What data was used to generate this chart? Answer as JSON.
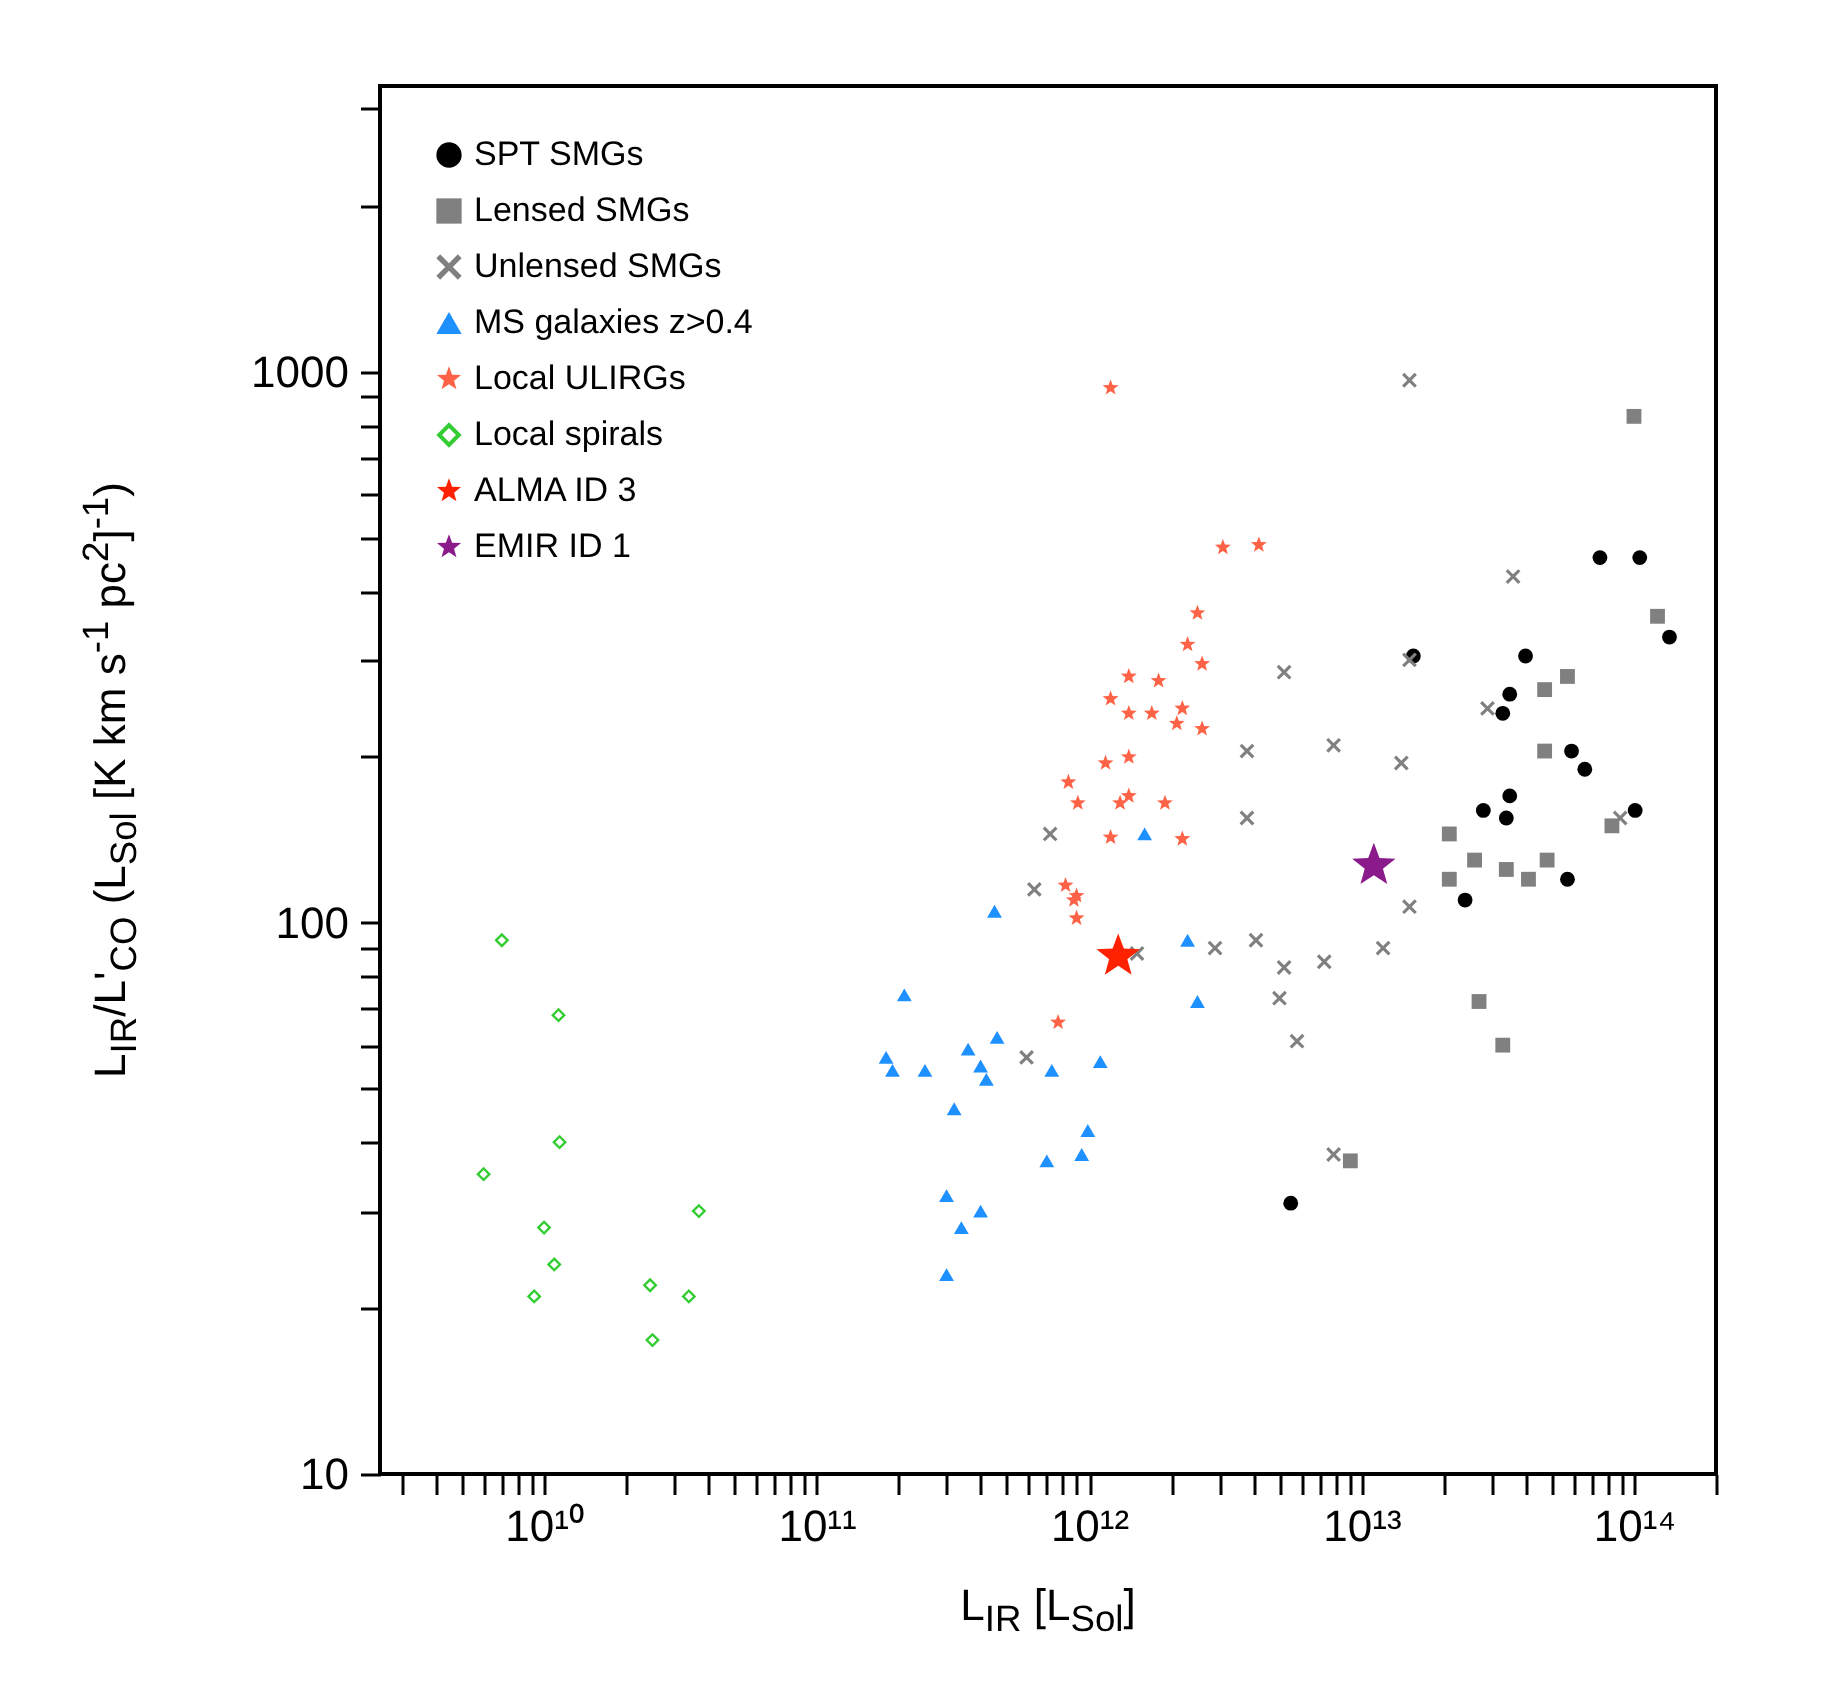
{
  "chart_data": {
    "type": "scatter",
    "xlabel": "L$_{IR}$ [L$_{Sol}$]",
    "ylabel": "L$_{IR}$/L'$_{CO}$ (L$_{Sol}$ [K km s$^{-1}$ pc$^{2}$]$^{-1}$)",
    "log": "xy",
    "legend": "top left",
    "grid": false,
    "xlim": [
      2500000000.0,
      200000000000000.0
    ],
    "ylim": [
      10,
      3300
    ],
    "xticks": [
      {
        "value": 3000000000.0,
        "label": null
      },
      {
        "value": 4000000000.0,
        "label": null
      },
      {
        "value": 5000000000.0,
        "label": null
      },
      {
        "value": 6000000000.0,
        "label": null
      },
      {
        "value": 7000000000.0,
        "label": null
      },
      {
        "value": 8000000000.0,
        "label": null
      },
      {
        "value": 9000000000.0,
        "label": null
      },
      {
        "value": 10000000000.0,
        "label": "10¹⁰"
      },
      {
        "value": 20000000000.0,
        "label": null
      },
      {
        "value": 30000000000.0,
        "label": null
      },
      {
        "value": 40000000000.0,
        "label": null
      },
      {
        "value": 50000000000.0,
        "label": null
      },
      {
        "value": 60000000000.0,
        "label": null
      },
      {
        "value": 70000000000.0,
        "label": null
      },
      {
        "value": 80000000000.0,
        "label": null
      },
      {
        "value": 90000000000.0,
        "label": null
      },
      {
        "value": 100000000000.0,
        "label": "10¹¹"
      },
      {
        "value": 200000000000.0,
        "label": null
      },
      {
        "value": 300000000000.0,
        "label": null
      },
      {
        "value": 400000000000.0,
        "label": null
      },
      {
        "value": 500000000000.0,
        "label": null
      },
      {
        "value": 600000000000.0,
        "label": null
      },
      {
        "value": 700000000000.0,
        "label": null
      },
      {
        "value": 800000000000.0,
        "label": null
      },
      {
        "value": 900000000000.0,
        "label": null
      },
      {
        "value": 1000000000000.0,
        "label": "10¹²"
      },
      {
        "value": 2000000000000.0,
        "label": null
      },
      {
        "value": 3000000000000.0,
        "label": null
      },
      {
        "value": 4000000000000.0,
        "label": null
      },
      {
        "value": 5000000000000.0,
        "label": null
      },
      {
        "value": 6000000000000.0,
        "label": null
      },
      {
        "value": 7000000000000.0,
        "label": null
      },
      {
        "value": 8000000000000.0,
        "label": null
      },
      {
        "value": 9000000000000.0,
        "label": null
      },
      {
        "value": 10000000000000.0,
        "label": "10¹³"
      },
      {
        "value": 20000000000000.0,
        "label": null
      },
      {
        "value": 30000000000000.0,
        "label": null
      },
      {
        "value": 40000000000000.0,
        "label": null
      },
      {
        "value": 50000000000000.0,
        "label": null
      },
      {
        "value": 60000000000000.0,
        "label": null
      },
      {
        "value": 70000000000000.0,
        "label": null
      },
      {
        "value": 80000000000000.0,
        "label": null
      },
      {
        "value": 90000000000000.0,
        "label": null
      },
      {
        "value": 100000000000000.0,
        "label": "10¹⁴"
      },
      {
        "value": 200000000000000.0,
        "label": null
      }
    ],
    "yticks": [
      10,
      {
        "value": 20,
        "label": null
      },
      {
        "value": 30,
        "label": null
      },
      {
        "value": 40,
        "label": null
      },
      {
        "value": 50,
        "label": null
      },
      {
        "value": 60,
        "label": null
      },
      {
        "value": 70,
        "label": null
      },
      {
        "value": 80,
        "label": null
      },
      {
        "value": 90,
        "label": null
      },
      100,
      {
        "value": 200,
        "label": null
      },
      {
        "value": 300,
        "label": null
      },
      {
        "value": 400,
        "label": null
      },
      {
        "value": 500,
        "label": null
      },
      {
        "value": 600,
        "label": null
      },
      {
        "value": 700,
        "label": null
      },
      {
        "value": 800,
        "label": null
      },
      {
        "value": 900,
        "label": null
      },
      1000,
      {
        "value": 2000,
        "label": null
      },
      {
        "value": 3000,
        "label": null
      }
    ],
    "series": [
      {
        "name": "SPT SMGs",
        "color": "#000000",
        "marker": "circle",
        "x": [
          75000000000000.0,
          105000000000000.0,
          135000000000000.0,
          15500000000000.0,
          40000000000000.0,
          35000000000000.0,
          33000000000000.0,
          59000000000000.0,
          66000000000000.0,
          28000000000000.0,
          35000000000000.0,
          34000000000000.0,
          101000000000000.0,
          57000000000000.0,
          24000000000000.0,
          5500000000000.0
        ],
        "values": [
          460,
          460,
          330,
          305,
          305,
          260,
          240,
          205,
          190,
          160,
          170,
          155,
          160,
          120,
          110,
          31
        ]
      },
      {
        "name": "Lensed SMGs",
        "color": "#808080",
        "marker": "square",
        "x": [
          100000000000000.0,
          122000000000000.0,
          47000000000000.0,
          57000000000000.0,
          47000000000000.0,
          83000000000000.0,
          21000000000000.0,
          21000000000000.0,
          26000000000000.0,
          34000000000000.0,
          41000000000000.0,
          48000000000000.0,
          27000000000000.0,
          33000000000000.0,
          9100000000000.0
        ],
        "values": [
          830,
          360,
          265,
          280,
          205,
          150,
          145,
          120,
          130,
          125,
          120,
          130,
          72,
          60,
          37
        ]
      },
      {
        "name": "Unlensed SMGs",
        "color": "#808080",
        "marker": "cross",
        "x": [
          5200000000000.0,
          3800000000000.0,
          3800000000000.0,
          7900000000000.0,
          720000000000.0,
          630000000000.0,
          15000000000000.0,
          36000000000000.0,
          15000000000000.0,
          14000000000000.0,
          29000000000000.0,
          89000000000000.0,
          590000000000.0,
          2900000000000.0,
          4100000000000.0,
          5200000000000.0,
          7300000000000.0,
          5000000000000.0,
          5800000000000.0,
          15000000000000.0,
          12000000000000.0,
          1500000000000.0,
          7900000000000.0
        ],
        "values": [
          285,
          205,
          155,
          210,
          145,
          115,
          965,
          425,
          300,
          195,
          245,
          155,
          57,
          90,
          93,
          83,
          85,
          73,
          61,
          107,
          90,
          88,
          38
        ]
      },
      {
        "name": "MS galaxies z>0.4",
        "color": "#1e90ff",
        "marker": "triangle",
        "x": [
          210000000000.0,
          180000000000.0,
          190000000000.0,
          250000000000.0,
          450000000000.0,
          460000000000.0,
          360000000000.0,
          400000000000.0,
          420000000000.0,
          320000000000.0,
          300000000000.0,
          340000000000.0,
          400000000000.0,
          300000000000.0,
          730000000000.0,
          700000000000.0,
          1600000000000.0,
          2300000000000.0,
          2500000000000.0,
          1100000000000.0,
          990000000000.0,
          940000000000.0
        ],
        "values": [
          74,
          57,
          54,
          54,
          105,
          62,
          59,
          55,
          52,
          46,
          32,
          28,
          30,
          23,
          54,
          37,
          145,
          93,
          72,
          56,
          42,
          38
        ]
      },
      {
        "name": "Local ULIRGs",
        "color": "#ff6347",
        "marker": "star",
        "x": [
          1200000000000.0,
          3100000000000.0,
          4200000000000.0,
          2500000000000.0,
          2300000000000.0,
          2600000000000.0,
          1400000000000.0,
          1800000000000.0,
          1200000000000.0,
          1400000000000.0,
          1700000000000.0,
          2200000000000.0,
          2100000000000.0,
          2600000000000.0,
          1150000000000.0,
          1400000000000.0,
          840000000000.0,
          910000000000.0,
          1400000000000.0,
          1300000000000.0,
          1900000000000.0,
          1200000000000.0,
          2200000000000.0,
          820000000000.0,
          900000000000.0,
          880000000000.0,
          900000000000.0,
          770000000000.0
        ],
        "values": [
          935,
          480,
          485,
          365,
          320,
          295,
          280,
          275,
          255,
          240,
          240,
          245,
          230,
          225,
          195,
          200,
          180,
          165,
          170,
          165,
          165,
          143,
          142,
          117,
          112,
          110,
          102,
          66
        ]
      },
      {
        "name": "Local spirals",
        "color": "#33cc33",
        "marker": "diamond",
        "x": [
          7000000000.0,
          11300000000.0,
          11400000000.0,
          6000000000.0,
          10000000000.0,
          10900000000.0,
          9200000000.0,
          24500000000.0,
          34000000000.0,
          37000000000.0,
          25000000000.0
        ],
        "values": [
          93,
          68,
          40,
          35,
          28,
          24,
          21,
          22,
          21,
          30,
          17.5
        ]
      },
      {
        "name": "ALMA ID 3",
        "color": "#ff2200",
        "marker": "star",
        "x": [
          1280000000000.0
        ],
        "values": [
          87
        ]
      },
      {
        "name": "EMIR ID 1",
        "color": "#8b1a8b",
        "marker": "star",
        "x": [
          11100000000000.0
        ],
        "values": [
          127
        ]
      }
    ]
  }
}
